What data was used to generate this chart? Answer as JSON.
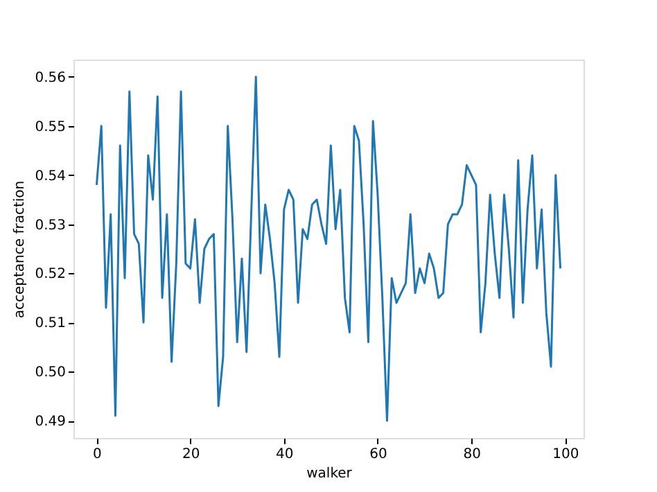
{
  "chart_data": {
    "type": "line",
    "xlabel": "walker",
    "ylabel": "acceptance fraction",
    "x": [
      0,
      1,
      2,
      3,
      4,
      5,
      6,
      7,
      8,
      9,
      10,
      11,
      12,
      13,
      14,
      15,
      16,
      17,
      18,
      19,
      20,
      21,
      22,
      23,
      24,
      25,
      26,
      27,
      28,
      29,
      30,
      31,
      32,
      33,
      34,
      35,
      36,
      37,
      38,
      39,
      40,
      41,
      42,
      43,
      44,
      45,
      46,
      47,
      48,
      49,
      50,
      51,
      52,
      53,
      54,
      55,
      56,
      57,
      58,
      59,
      60,
      61,
      62,
      63,
      64,
      65,
      66,
      67,
      68,
      69,
      70,
      71,
      72,
      73,
      74,
      75,
      76,
      77,
      78,
      79,
      80,
      81,
      82,
      83,
      84,
      85,
      86,
      87,
      88,
      89,
      90,
      91,
      92,
      93,
      94,
      95,
      96,
      97,
      98,
      99
    ],
    "series": [
      {
        "color": "#1f77b4",
        "values": [
          0.538,
          0.55,
          0.513,
          0.532,
          0.491,
          0.546,
          0.519,
          0.557,
          0.528,
          0.526,
          0.51,
          0.544,
          0.535,
          0.556,
          0.515,
          0.532,
          0.502,
          0.522,
          0.557,
          0.522,
          0.521,
          0.531,
          0.514,
          0.525,
          0.527,
          0.528,
          0.493,
          0.503,
          0.55,
          0.531,
          0.506,
          0.523,
          0.504,
          0.532,
          0.56,
          0.52,
          0.534,
          0.527,
          0.518,
          0.503,
          0.533,
          0.537,
          0.535,
          0.514,
          0.529,
          0.527,
          0.534,
          0.535,
          0.53,
          0.526,
          0.546,
          0.529,
          0.537,
          0.515,
          0.508,
          0.55,
          0.547,
          0.53,
          0.506,
          0.551,
          0.536,
          0.515,
          0.49,
          0.519,
          0.514,
          0.516,
          0.518,
          0.532,
          0.516,
          0.521,
          0.518,
          0.524,
          0.521,
          0.515,
          0.516,
          0.53,
          0.532,
          0.532,
          0.534,
          0.542,
          0.54,
          0.538,
          0.508,
          0.518,
          0.536,
          0.524,
          0.515,
          0.536,
          0.525,
          0.511,
          0.543,
          0.514,
          0.533,
          0.544,
          0.521,
          0.533,
          0.512,
          0.501,
          0.54,
          0.521
        ]
      }
    ],
    "xlim": [
      -4.95,
      103.95
    ],
    "xticks": [
      0,
      20,
      40,
      60,
      80,
      100
    ],
    "ylim": [
      0.4865,
      0.5635
    ],
    "yticks": [
      0.49,
      {
        "value": 0.5,
        "label": "0.50"
      },
      0.51,
      0.52,
      0.53,
      0.54,
      0.55,
      0.56
    ],
    "grid": false,
    "legend": false,
    "marker": "none",
    "line_style": "solid"
  }
}
